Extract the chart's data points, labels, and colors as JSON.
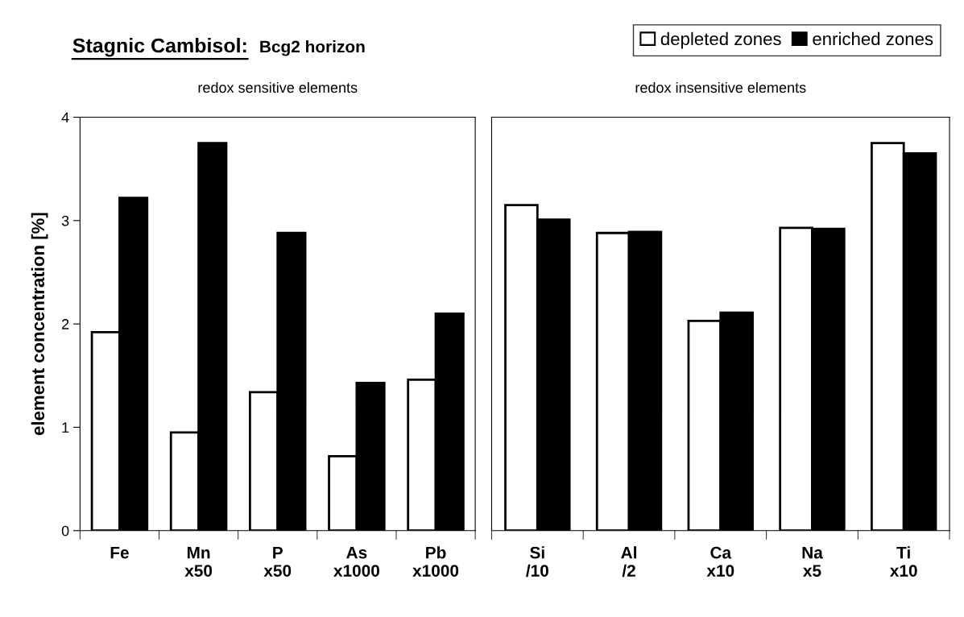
{
  "chart_data": [
    {
      "type": "bar",
      "title": "Stagnic Cambisol:",
      "subtitle": "Bcg2 horizon",
      "xlabel": "redox sensitive elements",
      "ylabel": "element concentration [%]",
      "categories": [
        "Fe",
        "Mn\nx50",
        "P\nx50",
        "As\nx1000",
        "Pb\nx1000"
      ],
      "series": [
        {
          "color": "#ffffff",
          "values": [
            1.92,
            0.95,
            1.34,
            0.72,
            1.46
          ]
        },
        {
          "color": "#000000",
          "values": [
            3.22,
            3.75,
            2.88,
            1.43,
            2.1
          ]
        }
      ],
      "ylim": [
        0,
        4
      ],
      "yticks": [
        0,
        1,
        2,
        3,
        4
      ],
      "grid": false,
      "legend": false
    },
    {
      "type": "bar",
      "xlabel": "redox insensitive elements",
      "categories": [
        "Si\n/10",
        "Al\n/2",
        "Ca\nx10",
        "Na\nx5",
        "Ti\nx10"
      ],
      "series": [
        {
          "name": "depleted zones",
          "color": "#ffffff",
          "values": [
            3.15,
            2.88,
            2.03,
            2.93,
            3.75
          ]
        },
        {
          "name": "enriched zones",
          "color": "#000000",
          "values": [
            3.01,
            2.89,
            2.11,
            2.92,
            3.65
          ]
        }
      ],
      "ylim": [
        0,
        4
      ],
      "tick_labels": "x",
      "grid": false,
      "legend": "top right"
    }
  ]
}
